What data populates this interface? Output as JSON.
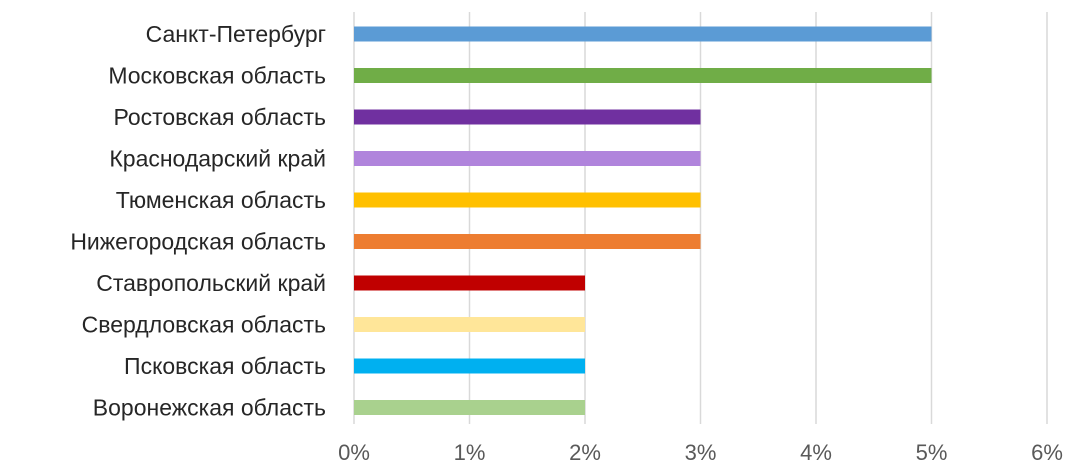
{
  "chart_data": {
    "type": "bar",
    "orientation": "horizontal",
    "title": "",
    "xlabel": "",
    "ylabel": "",
    "categories": [
      "Санкт-Петербург",
      "Московская область",
      "Ростовская область",
      "Краснодарский край",
      "Тюменская область",
      "Нижегородская область",
      "Ставропольский край",
      "Свердловская область",
      "Псковская область",
      "Воронежская область"
    ],
    "values": [
      5,
      5,
      3,
      3,
      3,
      3,
      2,
      2,
      2,
      2
    ],
    "value_unit": "%",
    "colors": [
      "#5b9bd5",
      "#70ad47",
      "#7030a0",
      "#b084dc",
      "#ffc000",
      "#ed7d31",
      "#c00000",
      "#ffe699",
      "#00b0f0",
      "#a9d18e"
    ],
    "xlim": [
      0,
      6
    ],
    "ticks": [
      "0%",
      "1%",
      "2%",
      "3%",
      "4%",
      "5%",
      "6%"
    ],
    "grid": true,
    "legend": "none"
  }
}
